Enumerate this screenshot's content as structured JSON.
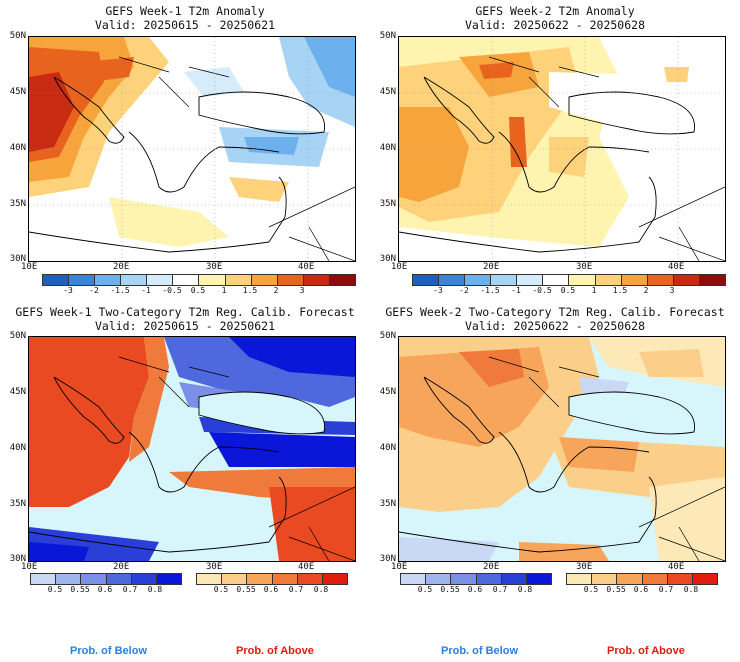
{
  "panels": [
    {
      "id": "w1-anom",
      "title1": "GEFS Week-1 T2m Anomaly",
      "title2": "Valid: 20250615 - 20250621"
    },
    {
      "id": "w2-anom",
      "title1": "GEFS Week-2 T2m Anomaly",
      "title2": "Valid: 20250622 - 20250628"
    },
    {
      "id": "w1-prob",
      "title1": "GEFS Week-1 Two-Category T2m Reg. Calib. Forecast",
      "title2": "Valid: 20250615 - 20250621"
    },
    {
      "id": "w2-prob",
      "title1": "GEFS Week-2 Two-Category T2m Reg. Calib. Forecast",
      "title2": "Valid: 20250622 - 20250628"
    }
  ],
  "axes": {
    "lat_labels": [
      "50N",
      "45N",
      "40N",
      "35N",
      "30N"
    ],
    "lon_labels": [
      "10E",
      "20E",
      "30E",
      "40E"
    ]
  },
  "anomaly_colorbar": {
    "ticks": [
      "-3",
      "-2",
      "-1.5",
      "-1",
      "-0.5",
      "0.5",
      "1",
      "1.5",
      "2",
      "3"
    ],
    "colors": [
      "#1f5fbf",
      "#3a85d8",
      "#6cb0ee",
      "#a7d3f5",
      "#d6ecfa",
      "#ffffff",
      "#fff3b0",
      "#fdd27a",
      "#f7a43c",
      "#e8631e",
      "#c92a12",
      "#8f0c0c"
    ]
  },
  "prob_colorbar": {
    "below_ticks": [
      "0.5",
      "0.55",
      "0.6",
      "0.7",
      "0.8"
    ],
    "above_ticks": [
      "0.5",
      "0.55",
      "0.6",
      "0.7",
      "0.8"
    ],
    "below_colors": [
      "#c8d8f5",
      "#9fb5ee",
      "#7a8fe6",
      "#4f68dd",
      "#2a3fd8",
      "#0a16d8"
    ],
    "above_colors": [
      "#fde9b8",
      "#fbcf8a",
      "#f7a55b",
      "#f07a3c",
      "#ea4a22",
      "#e21d10"
    ]
  },
  "footer": {
    "below": "Prob. of Below",
    "above": "Prob. of Above",
    "below_color": "#2a7de0",
    "above_color": "#e01a10"
  },
  "colors": {
    "sea": "#d7f6fb",
    "land_white": "#ffffff"
  }
}
